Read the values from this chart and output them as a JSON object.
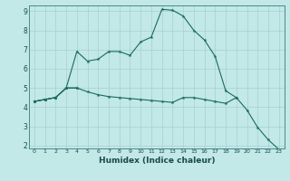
{
  "title": "",
  "xlabel": "Humidex (Indice chaleur)",
  "bg_color": "#c2e8e8",
  "grid_color": "#a8d0d0",
  "line_color": "#1a6b5a",
  "x_values": [
    0,
    1,
    2,
    3,
    4,
    5,
    6,
    7,
    8,
    9,
    10,
    11,
    12,
    13,
    14,
    15,
    16,
    17,
    18,
    19,
    20,
    21,
    22,
    23
  ],
  "line2": [
    4.3,
    4.4,
    4.5,
    5.0,
    6.9,
    6.4,
    6.5,
    6.9,
    6.9,
    6.7,
    7.4,
    7.65,
    9.1,
    9.05,
    8.75,
    8.0,
    7.5,
    6.65,
    4.85,
    4.5,
    null,
    null,
    null,
    null
  ],
  "line3": [
    4.3,
    4.4,
    4.5,
    5.0,
    5.0,
    4.8,
    4.65,
    4.55,
    4.5,
    4.45,
    4.4,
    4.35,
    4.3,
    4.25,
    4.5,
    4.5,
    4.4,
    4.3,
    4.2,
    4.5,
    3.85,
    2.95,
    2.3,
    1.8
  ],
  "line1": [
    4.3,
    4.4,
    4.5,
    5.0,
    5.0,
    null,
    null,
    null,
    null,
    null,
    null,
    null,
    null,
    null,
    null,
    null,
    null,
    null,
    null,
    null,
    null,
    null,
    null,
    null
  ],
  "ylim": [
    2,
    9
  ],
  "xlim": [
    0,
    23
  ],
  "yticks": [
    2,
    3,
    4,
    5,
    6,
    7,
    8,
    9
  ],
  "xticks": [
    0,
    1,
    2,
    3,
    4,
    5,
    6,
    7,
    8,
    9,
    10,
    11,
    12,
    13,
    14,
    15,
    16,
    17,
    18,
    19,
    20,
    21,
    22,
    23
  ]
}
